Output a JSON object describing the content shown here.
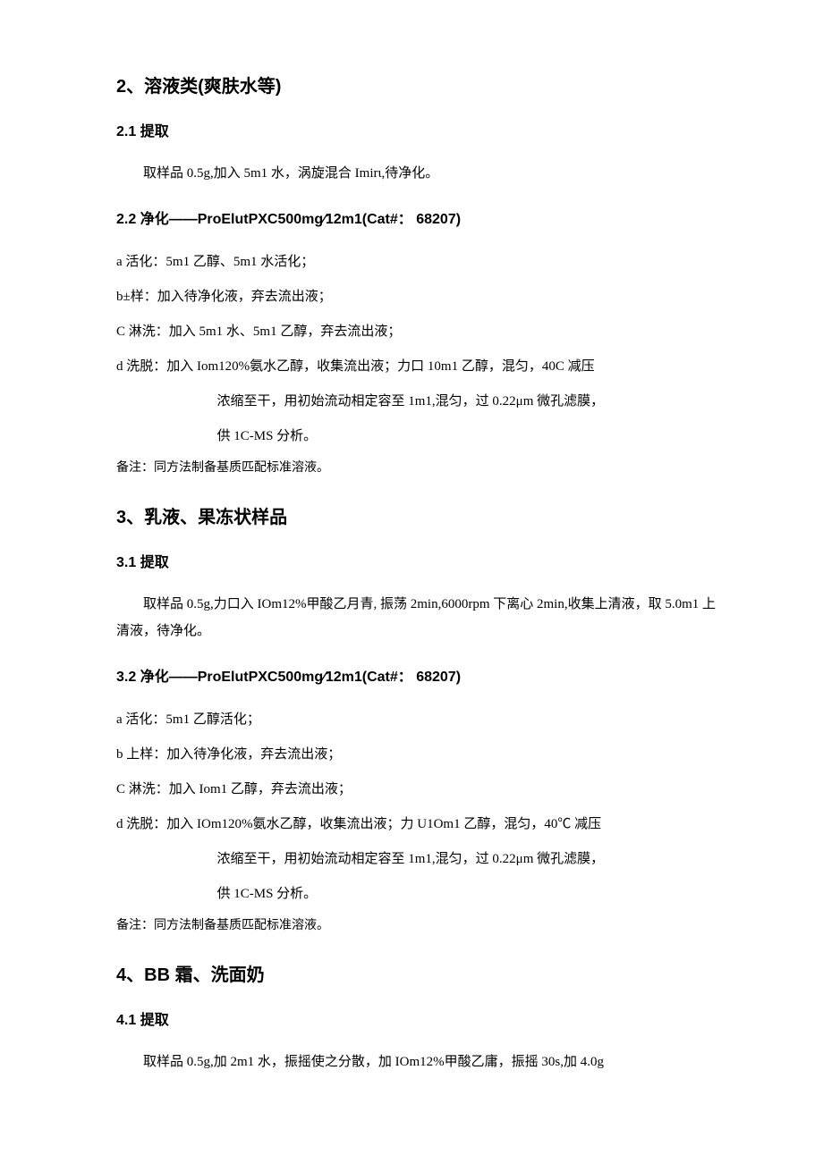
{
  "sec2": {
    "title": "2、溶液类(爽肤水等)",
    "s21_title": "2.1  提取",
    "s21_para": "取样品 0.5g,加入 5m1 水，涡旋混合 Imirι,待净化。",
    "s22_title": "2.2  净化——ProElutPXC500mg∕12m1(Cat#： 68207)",
    "s22_a": "a 活化：5m1 乙醇、5m1 水活化；",
    "s22_b": "b±样：加入待净化液，弃去流出液；",
    "s22_c": "C 淋洗：加入 5m1 水、5m1 乙醇，弃去流出液；",
    "s22_d": "d 洗脱：加入 Iom120%氨水乙醇，收集流出液；力口 10m1 乙醇，混匀，40C 减压",
    "s22_d2": "浓缩至干，用初始流动相定容至 1m1,混匀，过 0.22μm 微孔滤膜，",
    "s22_d3": "供 1C-MS 分析。",
    "s22_note": "备注：同方法制备基质匹配标准溶液。"
  },
  "sec3": {
    "title": "3、乳液、果冻状样品",
    "s31_title": "3.1  提取",
    "s31_para": "取样品 0.5g,力口入 IOm12%甲酸乙月青, 振荡 2min,6000rpm 下离心 2min,收集上清液，取 5.0m1 上清液，待净化。",
    "s32_title": "3.2  净化——ProElutPXC500mg∕12m1(Cat#： 68207)",
    "s32_a": "a 活化：5m1 乙醇活化；",
    "s32_b": "b 上样：加入待净化液，弃去流出液；",
    "s32_c": "C 淋洗：加入 Iom1 乙醇，弃去流出液；",
    "s32_d": "d 洗脱：加入 IOm120%氨水乙醇，收集流出液；力 U1Om1 乙醇，混匀，40℃ 减压",
    "s32_d2": "浓缩至干，用初始流动相定容至 1m1,混匀，过 0.22μm 微孔滤膜，",
    "s32_d3": "供 1C-MS 分析。",
    "s32_note": "备注：同方法制备基质匹配标准溶液。"
  },
  "sec4": {
    "title": "4、BB 霜、洗面奶",
    "s41_title": "4.1  提取",
    "s41_para": "取样品 0.5g,加 2m1 水，振摇使之分散，加 IOm12%甲酸乙庸，振摇 30s,加 4.0g"
  }
}
